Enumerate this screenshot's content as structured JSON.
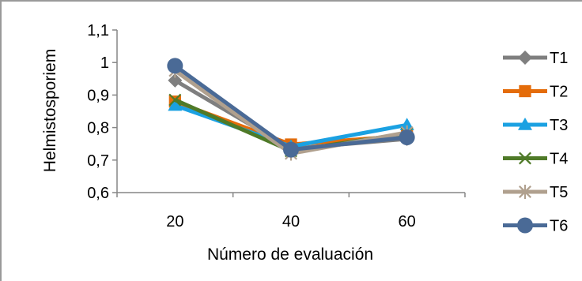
{
  "chart_data": {
    "type": "line",
    "title": "",
    "xlabel": "Número de evaluación",
    "ylabel": "Helmistosporiem",
    "categories": [
      "20",
      "40",
      "60"
    ],
    "ylim": [
      0.6,
      1.1
    ],
    "yticks": [
      "0,6",
      "0,7",
      "0,8",
      "0,9",
      "1",
      "1,1"
    ],
    "grid": false,
    "legend": "right",
    "series": [
      {
        "name": "T1",
        "values": [
          0.945,
          0.735,
          0.765
        ],
        "color": "#7f7f7f",
        "marker": "diamond"
      },
      {
        "name": "T2",
        "values": [
          0.88,
          0.748,
          0.775
        ],
        "color": "#e46c0a",
        "marker": "square"
      },
      {
        "name": "T3",
        "values": [
          0.868,
          0.742,
          0.808
        ],
        "color": "#1ba1e2",
        "marker": "triangle"
      },
      {
        "name": "T4",
        "values": [
          0.885,
          0.728,
          0.782
        ],
        "color": "#4f7a28",
        "marker": "x"
      },
      {
        "name": "T5",
        "values": [
          0.975,
          0.72,
          0.785
        ],
        "color": "#b0a08e",
        "marker": "star"
      },
      {
        "name": "T6",
        "values": [
          0.99,
          0.732,
          0.77
        ],
        "color": "#4a6a96",
        "marker": "circle"
      }
    ]
  }
}
